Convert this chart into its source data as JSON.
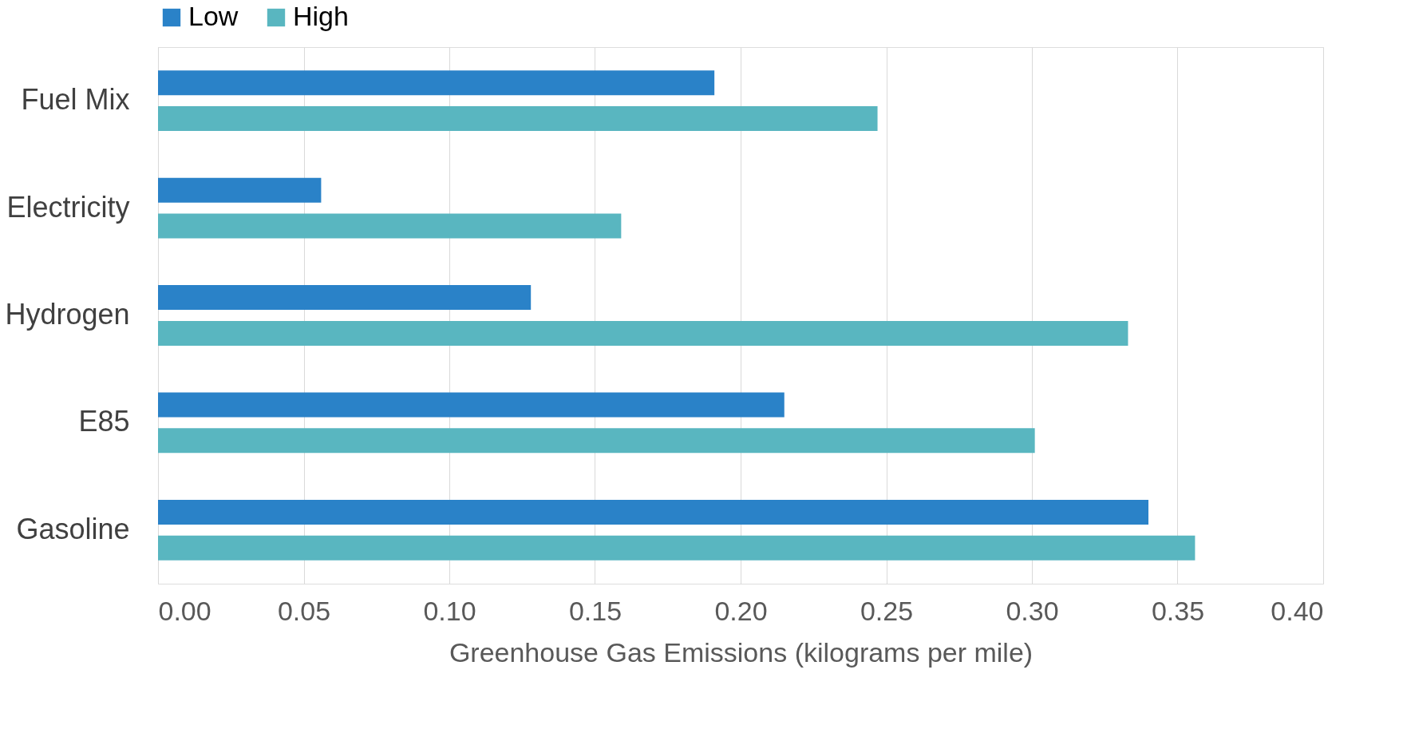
{
  "chart_data": {
    "type": "bar",
    "orientation": "horizontal",
    "xlabel": "Greenhouse Gas Emissions (kilograms per mile)",
    "categories": [
      "Fuel Mix",
      "Electricity",
      "Hydrogen",
      "E85",
      "Gasoline"
    ],
    "series": [
      {
        "name": "Low",
        "color": "#2a82c8",
        "values": [
          0.191,
          0.056,
          0.128,
          0.215,
          0.34
        ]
      },
      {
        "name": "High",
        "color": "#59b6c0",
        "values": [
          0.247,
          0.159,
          0.333,
          0.301,
          0.356
        ]
      }
    ],
    "xlim": [
      0,
      0.4
    ],
    "xticks": [
      {
        "value": 0,
        "label": "0.00"
      },
      {
        "value": 0.05,
        "label": "0.05"
      },
      {
        "value": 0.1,
        "label": "0.10"
      },
      {
        "value": 0.15,
        "label": "0.15"
      },
      {
        "value": 0.2,
        "label": "0.20"
      },
      {
        "value": 0.25,
        "label": "0.25"
      },
      {
        "value": 0.3,
        "label": "0.30"
      },
      {
        "value": 0.35,
        "label": "0.35"
      },
      {
        "value": 0.4,
        "label": "0.40"
      }
    ],
    "grid": "x",
    "legend": "top"
  }
}
